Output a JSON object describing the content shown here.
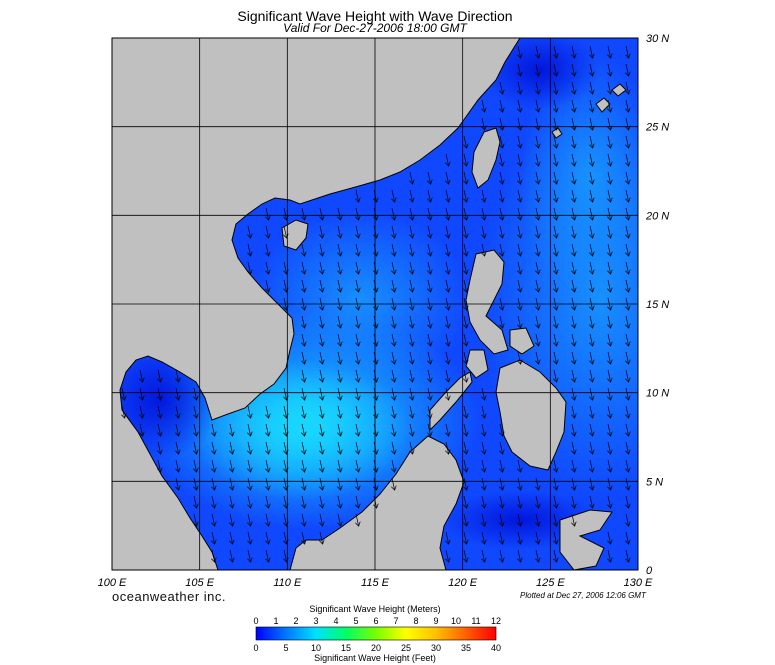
{
  "header": {
    "title": "Significant Wave Height with Wave Direction",
    "subtitle": "Valid For Dec-27-2006 18:00 GMT"
  },
  "map": {
    "lon_range": [
      100,
      130
    ],
    "lat_range": [
      0,
      30
    ],
    "lon_labels": [
      "100 E",
      "105 E",
      "110 E",
      "115 E",
      "120 E",
      "125 E",
      "130 E"
    ],
    "lat_labels": [
      "0",
      "5 N",
      "10 N",
      "15 N",
      "20 N",
      "25 N",
      "30 N"
    ],
    "grid_step_deg": 5,
    "land_color": "#c0c0c0",
    "ocean_color": "#1040ff",
    "arrow_direction": "toward south-west",
    "arrow_color": "#000000"
  },
  "footer": {
    "brand": "oceanweather inc.",
    "plotted": "Plotted at Dec 27, 2006 12:06 GMT"
  },
  "colorbar": {
    "title_top": "Significant Wave Height (Meters)",
    "title_bottom": "Significant Wave Height (Feet)",
    "meters_ticks": [
      "0",
      "1",
      "2",
      "3",
      "4",
      "5",
      "6",
      "7",
      "8",
      "9",
      "10",
      "11",
      "12"
    ],
    "feet_ticks": [
      "0",
      "5",
      "10",
      "15",
      "20",
      "25",
      "30",
      "35",
      "40"
    ],
    "colors": [
      "#0000ff",
      "#0078ff",
      "#00e0ff",
      "#00ff64",
      "#78ff00",
      "#ffff00",
      "#ffc000",
      "#ff6000",
      "#ff0000"
    ]
  }
}
